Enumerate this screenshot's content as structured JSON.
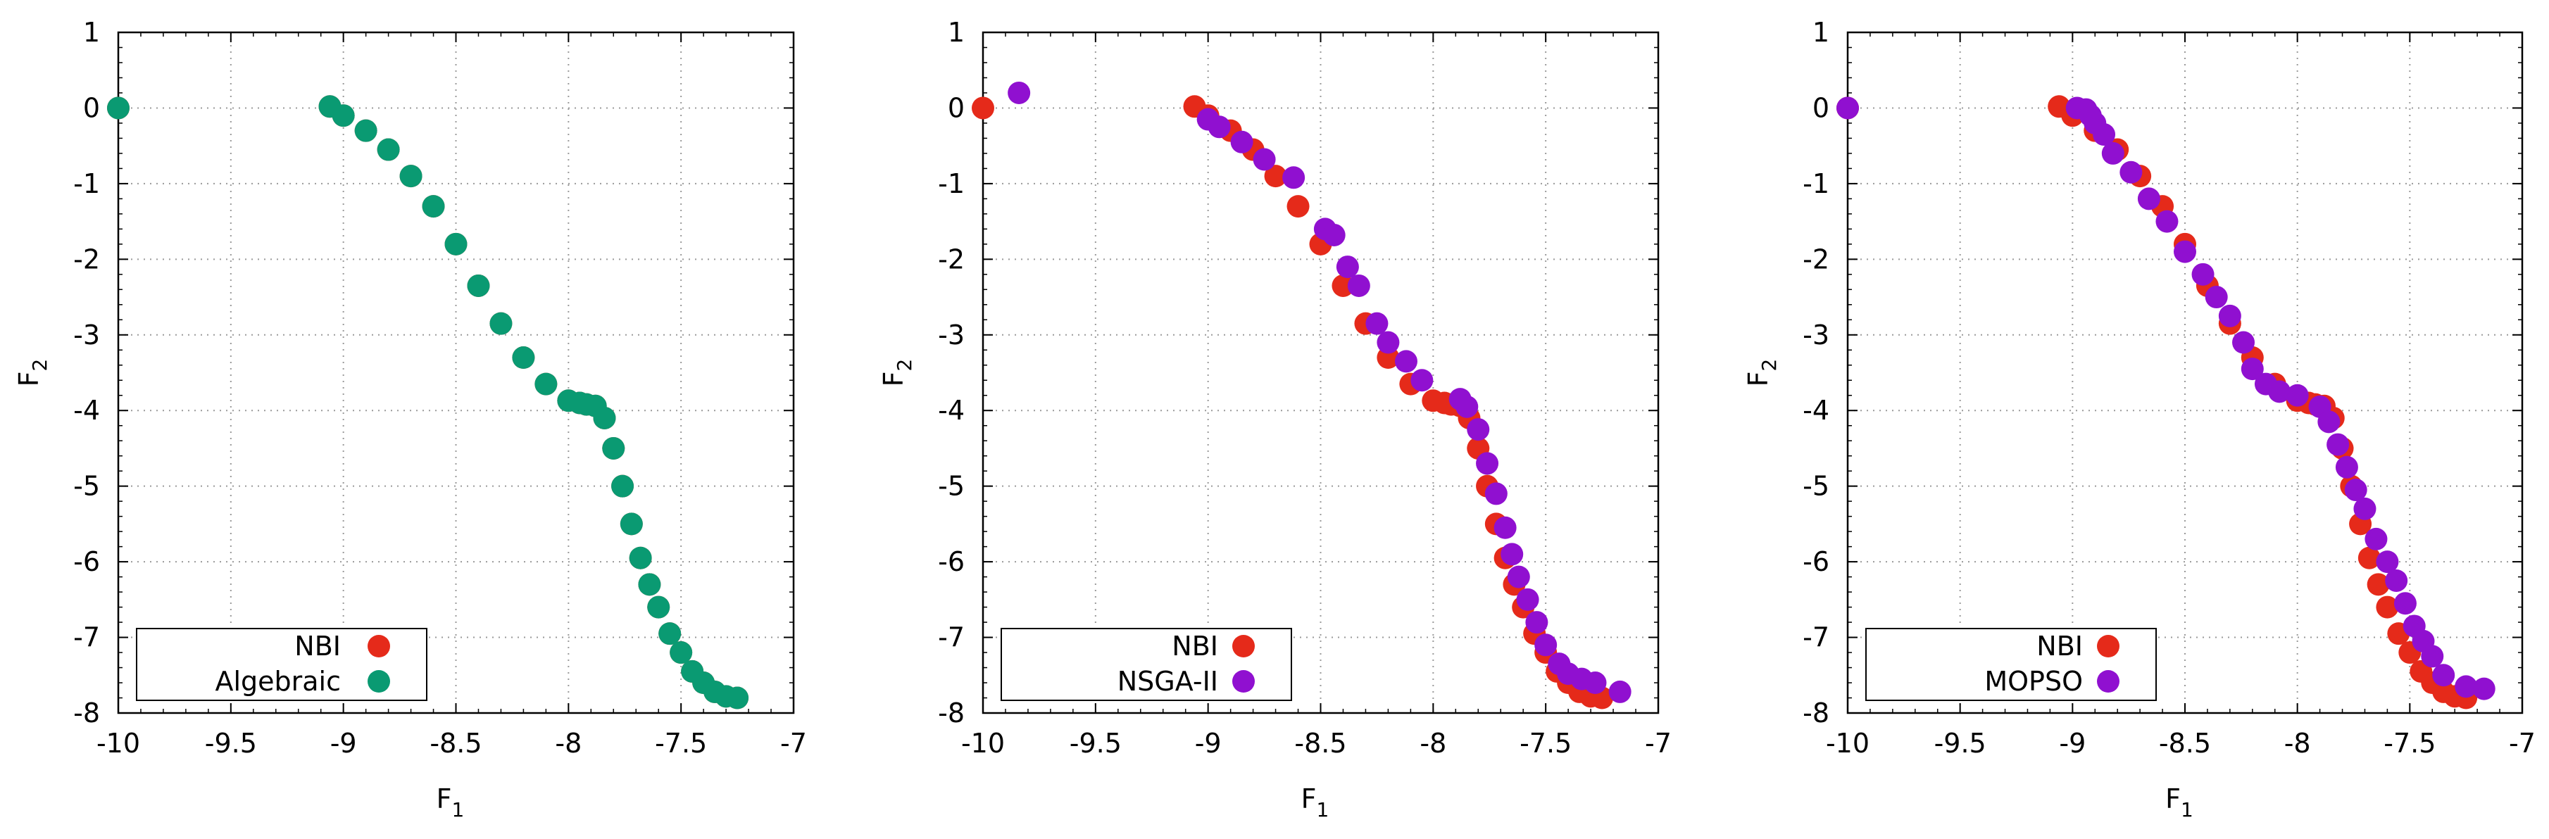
{
  "chart_data": [
    {
      "type": "scatter",
      "title": "",
      "xlabel": "F",
      "xlabel_sub": "1",
      "ylabel": "F",
      "ylabel_sub": "2",
      "xlim": [
        -10,
        -7
      ],
      "ylim": [
        -8,
        1
      ],
      "xticks": [
        -10,
        -9.5,
        -9,
        -8.5,
        -8,
        -7.5,
        -7
      ],
      "xtick_labels": [
        "-10",
        "-9.5",
        "-9",
        "-8.5",
        "-8",
        "-7.5",
        "-7"
      ],
      "yticks": [
        1,
        0,
        -1,
        -2,
        -3,
        -4,
        -5,
        -6,
        -7,
        -8
      ],
      "ytick_labels": [
        "1",
        "0",
        "-1",
        "-2",
        "-3",
        "-4",
        "-5",
        "-6",
        "-7",
        "-8"
      ],
      "grid": true,
      "legend_position": "bottom-left",
      "series": [
        {
          "name": "NBI",
          "color": "#e52a1a",
          "x": [
            -10.0,
            -9.06,
            -9.0,
            -8.9,
            -8.8,
            -8.7,
            -8.6,
            -8.5,
            -8.4,
            -8.3,
            -8.2,
            -8.1,
            -8.0,
            -7.95,
            -7.92,
            -7.88,
            -7.84,
            -7.8,
            -7.76,
            -7.72,
            -7.68,
            -7.64,
            -7.6,
            -7.55,
            -7.5,
            -7.45,
            -7.4,
            -7.35,
            -7.3,
            -7.25
          ],
          "y": [
            0.0,
            0.02,
            -0.1,
            -0.3,
            -0.55,
            -0.9,
            -1.3,
            -1.8,
            -2.35,
            -2.85,
            -3.3,
            -3.65,
            -3.87,
            -3.9,
            -3.92,
            -3.94,
            -4.1,
            -4.5,
            -5.0,
            -5.5,
            -5.95,
            -6.3,
            -6.6,
            -6.95,
            -7.2,
            -7.45,
            -7.6,
            -7.72,
            -7.78,
            -7.8
          ]
        },
        {
          "name": "Algebraic",
          "color": "#0a9a72",
          "x": [
            -10.0,
            -9.06,
            -9.0,
            -8.9,
            -8.8,
            -8.7,
            -8.6,
            -8.5,
            -8.4,
            -8.3,
            -8.2,
            -8.1,
            -8.0,
            -7.95,
            -7.92,
            -7.88,
            -7.84,
            -7.8,
            -7.76,
            -7.72,
            -7.68,
            -7.64,
            -7.6,
            -7.55,
            -7.5,
            -7.45,
            -7.4,
            -7.35,
            -7.3,
            -7.25
          ],
          "y": [
            0.0,
            0.02,
            -0.1,
            -0.3,
            -0.55,
            -0.9,
            -1.3,
            -1.8,
            -2.35,
            -2.85,
            -3.3,
            -3.65,
            -3.87,
            -3.9,
            -3.92,
            -3.94,
            -4.1,
            -4.5,
            -5.0,
            -5.5,
            -5.95,
            -6.3,
            -6.6,
            -6.95,
            -7.2,
            -7.45,
            -7.6,
            -7.72,
            -7.78,
            -7.8
          ]
        }
      ]
    },
    {
      "type": "scatter",
      "title": "",
      "xlabel": "F",
      "xlabel_sub": "1",
      "ylabel": "F",
      "ylabel_sub": "2",
      "xlim": [
        -10,
        -7
      ],
      "ylim": [
        -8,
        1
      ],
      "xticks": [
        -10,
        -9.5,
        -9,
        -8.5,
        -8,
        -7.5,
        -7
      ],
      "xtick_labels": [
        "-10",
        "-9.5",
        "-9",
        "-8.5",
        "-8",
        "-7.5",
        "-7"
      ],
      "yticks": [
        1,
        0,
        -1,
        -2,
        -3,
        -4,
        -5,
        -6,
        -7,
        -8
      ],
      "ytick_labels": [
        "1",
        "0",
        "-1",
        "-2",
        "-3",
        "-4",
        "-5",
        "-6",
        "-7",
        "-8"
      ],
      "grid": true,
      "legend_position": "bottom-left",
      "series": [
        {
          "name": "NBI",
          "color": "#e52a1a",
          "x": [
            -10.0,
            -9.06,
            -9.0,
            -8.9,
            -8.8,
            -8.7,
            -8.6,
            -8.5,
            -8.4,
            -8.3,
            -8.2,
            -8.1,
            -8.0,
            -7.95,
            -7.92,
            -7.88,
            -7.84,
            -7.8,
            -7.76,
            -7.72,
            -7.68,
            -7.64,
            -7.6,
            -7.55,
            -7.5,
            -7.45,
            -7.4,
            -7.35,
            -7.3,
            -7.25
          ],
          "y": [
            0.0,
            0.02,
            -0.1,
            -0.3,
            -0.55,
            -0.9,
            -1.3,
            -1.8,
            -2.35,
            -2.85,
            -3.3,
            -3.65,
            -3.87,
            -3.9,
            -3.92,
            -3.94,
            -4.1,
            -4.5,
            -5.0,
            -5.5,
            -5.95,
            -6.3,
            -6.6,
            -6.95,
            -7.2,
            -7.45,
            -7.6,
            -7.72,
            -7.78,
            -7.8
          ]
        },
        {
          "name": "NSGA-II",
          "color": "#9010d0",
          "x": [
            -9.84,
            -9.0,
            -8.95,
            -8.85,
            -8.75,
            -8.62,
            -8.48,
            -8.44,
            -8.38,
            -8.33,
            -8.25,
            -8.2,
            -8.12,
            -8.05,
            -7.88,
            -7.85,
            -7.8,
            -7.76,
            -7.72,
            -7.68,
            -7.65,
            -7.62,
            -7.58,
            -7.54,
            -7.5,
            -7.44,
            -7.4,
            -7.34,
            -7.28,
            -7.17
          ],
          "y": [
            0.2,
            -0.15,
            -0.25,
            -0.45,
            -0.68,
            -0.92,
            -1.6,
            -1.68,
            -2.1,
            -2.35,
            -2.85,
            -3.1,
            -3.35,
            -3.6,
            -3.85,
            -3.95,
            -4.25,
            -4.7,
            -5.1,
            -5.55,
            -5.9,
            -6.2,
            -6.5,
            -6.8,
            -7.1,
            -7.35,
            -7.48,
            -7.55,
            -7.6,
            -7.72
          ]
        }
      ]
    },
    {
      "type": "scatter",
      "title": "",
      "xlabel": "F",
      "xlabel_sub": "1",
      "ylabel": "F",
      "ylabel_sub": "2",
      "xlim": [
        -10,
        -7
      ],
      "ylim": [
        -8,
        1
      ],
      "xticks": [
        -10,
        -9.5,
        -9,
        -8.5,
        -8,
        -7.5,
        -7
      ],
      "xtick_labels": [
        "-10",
        "-9.5",
        "-9",
        "-8.5",
        "-8",
        "-7.5",
        "-7"
      ],
      "yticks": [
        1,
        0,
        -1,
        -2,
        -3,
        -4,
        -5,
        -6,
        -7,
        -8
      ],
      "ytick_labels": [
        "1",
        "0",
        "-1",
        "-2",
        "-3",
        "-4",
        "-5",
        "-6",
        "-7",
        "-8"
      ],
      "grid": true,
      "legend_position": "bottom-left",
      "series": [
        {
          "name": "NBI",
          "color": "#e52a1a",
          "x": [
            -10.0,
            -9.06,
            -9.0,
            -8.9,
            -8.8,
            -8.7,
            -8.6,
            -8.5,
            -8.4,
            -8.3,
            -8.2,
            -8.1,
            -8.0,
            -7.95,
            -7.92,
            -7.88,
            -7.84,
            -7.8,
            -7.76,
            -7.72,
            -7.68,
            -7.64,
            -7.6,
            -7.55,
            -7.5,
            -7.45,
            -7.4,
            -7.35,
            -7.3,
            -7.25
          ],
          "y": [
            0.0,
            0.02,
            -0.1,
            -0.3,
            -0.55,
            -0.9,
            -1.3,
            -1.8,
            -2.35,
            -2.85,
            -3.3,
            -3.65,
            -3.87,
            -3.9,
            -3.92,
            -3.94,
            -4.1,
            -4.5,
            -5.0,
            -5.5,
            -5.95,
            -6.3,
            -6.6,
            -6.95,
            -7.2,
            -7.45,
            -7.6,
            -7.72,
            -7.78,
            -7.8
          ]
        },
        {
          "name": "MOPSO",
          "color": "#9010d0",
          "x": [
            -10.0,
            -8.98,
            -8.94,
            -8.92,
            -8.9,
            -8.86,
            -8.82,
            -8.74,
            -8.66,
            -8.58,
            -8.5,
            -8.42,
            -8.36,
            -8.3,
            -8.24,
            -8.2,
            -8.14,
            -8.08,
            -8.0,
            -7.9,
            -7.86,
            -7.82,
            -7.78,
            -7.74,
            -7.7,
            -7.65,
            -7.6,
            -7.56,
            -7.52,
            -7.48,
            -7.44,
            -7.4,
            -7.35,
            -7.25,
            -7.17
          ],
          "y": [
            0.0,
            0.0,
            -0.02,
            -0.1,
            -0.2,
            -0.35,
            -0.6,
            -0.85,
            -1.2,
            -1.5,
            -1.9,
            -2.2,
            -2.5,
            -2.75,
            -3.1,
            -3.45,
            -3.65,
            -3.75,
            -3.8,
            -3.95,
            -4.15,
            -4.45,
            -4.75,
            -5.05,
            -5.3,
            -5.7,
            -6.0,
            -6.25,
            -6.55,
            -6.85,
            -7.05,
            -7.25,
            -7.5,
            -7.65,
            -7.68
          ]
        }
      ]
    }
  ]
}
